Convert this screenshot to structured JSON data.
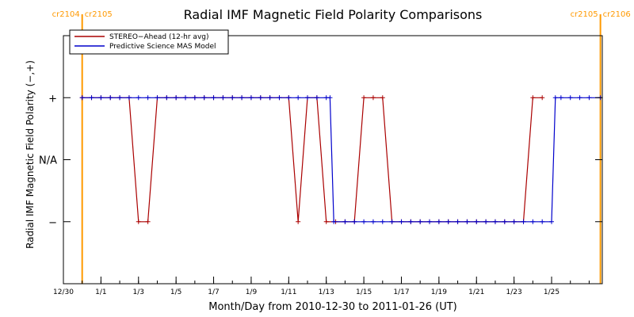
{
  "chart_data": {
    "type": "line",
    "title": "Radial IMF Magnetic Field Polarity Comparisons",
    "xlabel": "Month/Day from 2010-12-30 to 2011-01-26 (UT)",
    "ylabel": "Radial IMF Magnetic Field Polarity (−,+)",
    "x_unit": "days after 2010-12-30",
    "xlim": [
      0,
      28.7
    ],
    "ylim": [
      -2,
      2
    ],
    "x_ticks": [
      {
        "x": 0,
        "label": "12/30"
      },
      {
        "x": 2,
        "label": "1/1"
      },
      {
        "x": 4,
        "label": "1/3"
      },
      {
        "x": 6,
        "label": "1/5"
      },
      {
        "x": 8,
        "label": "1/7"
      },
      {
        "x": 10,
        "label": "1/9"
      },
      {
        "x": 12,
        "label": "1/11"
      },
      {
        "x": 14,
        "label": "1/13"
      },
      {
        "x": 16,
        "label": "1/15"
      },
      {
        "x": 18,
        "label": "1/17"
      },
      {
        "x": 20,
        "label": "1/19"
      },
      {
        "x": 22,
        "label": "1/21"
      },
      {
        "x": 24,
        "label": "1/23"
      },
      {
        "x": 26,
        "label": "1/25"
      }
    ],
    "y_ticks": [
      {
        "y": 1,
        "label": "+"
      },
      {
        "y": 0,
        "label": "N/A"
      },
      {
        "y": -1,
        "label": "−"
      }
    ],
    "carrington_markers": [
      {
        "x": 1.0,
        "label_left": "cr2104",
        "label_right": "cr2105",
        "color": "#FF9900"
      },
      {
        "x": 28.6,
        "label_left": "cr2105",
        "label_right": "cr2106",
        "color": "#FF9900"
      }
    ],
    "legend_position": "top-left",
    "grid": false,
    "series": [
      {
        "name": "STEREO−Ahead (12-hr avg)",
        "color": "#AA0000",
        "markers": true,
        "x": [
          1.0,
          1.5,
          2.0,
          2.5,
          3.0,
          3.5,
          4.0,
          4.5,
          5.0,
          5.5,
          6.0,
          6.5,
          7.0,
          7.5,
          8.0,
          8.5,
          9.0,
          9.5,
          10.0,
          10.5,
          11.0,
          11.5,
          12.0,
          12.5,
          13.0,
          13.5,
          14.0,
          14.5,
          15.0,
          15.5,
          16.0,
          16.5,
          17.0,
          17.5,
          18.0,
          18.5,
          19.0,
          19.5,
          20.0,
          20.5,
          21.0,
          21.5,
          22.0,
          22.5,
          23.0,
          23.5,
          24.0,
          24.5,
          25.0,
          25.5
        ],
        "y": [
          1,
          1,
          1,
          1,
          1,
          1,
          -1,
          -1,
          1,
          1,
          1,
          1,
          1,
          1,
          1,
          1,
          1,
          1,
          1,
          1,
          1,
          1,
          1,
          -1,
          1,
          1,
          -1,
          -1,
          -1,
          -1,
          1,
          1,
          1,
          -1,
          -1,
          -1,
          -1,
          -1,
          -1,
          -1,
          -1,
          -1,
          -1,
          -1,
          -1,
          -1,
          -1,
          -1,
          1,
          1
        ]
      },
      {
        "name": "Predictive Science MAS Model",
        "color": "#0000CC",
        "markers": true,
        "x": [
          1.0,
          1.5,
          2.0,
          2.5,
          3.0,
          3.5,
          4.0,
          4.5,
          5.0,
          5.5,
          6.0,
          6.5,
          7.0,
          7.5,
          8.0,
          8.5,
          9.0,
          9.5,
          10.0,
          10.5,
          11.0,
          11.5,
          12.0,
          12.5,
          13.0,
          13.5,
          14.0,
          14.2,
          14.4,
          15.0,
          15.5,
          16.0,
          16.5,
          17.0,
          17.5,
          18.0,
          18.5,
          19.0,
          19.5,
          20.0,
          20.5,
          21.0,
          21.5,
          22.0,
          22.5,
          23.0,
          23.5,
          24.0,
          24.5,
          25.0,
          25.5,
          26.0,
          26.2,
          26.5,
          27.0,
          27.5,
          28.0,
          28.6
        ],
        "y": [
          1,
          1,
          1,
          1,
          1,
          1,
          1,
          1,
          1,
          1,
          1,
          1,
          1,
          1,
          1,
          1,
          1,
          1,
          1,
          1,
          1,
          1,
          1,
          1,
          1,
          1,
          1,
          1,
          -1,
          -1,
          -1,
          -1,
          -1,
          -1,
          -1,
          -1,
          -1,
          -1,
          -1,
          -1,
          -1,
          -1,
          -1,
          -1,
          -1,
          -1,
          -1,
          -1,
          -1,
          -1,
          -1,
          -1,
          1,
          1,
          1,
          1,
          1,
          1
        ]
      }
    ]
  }
}
